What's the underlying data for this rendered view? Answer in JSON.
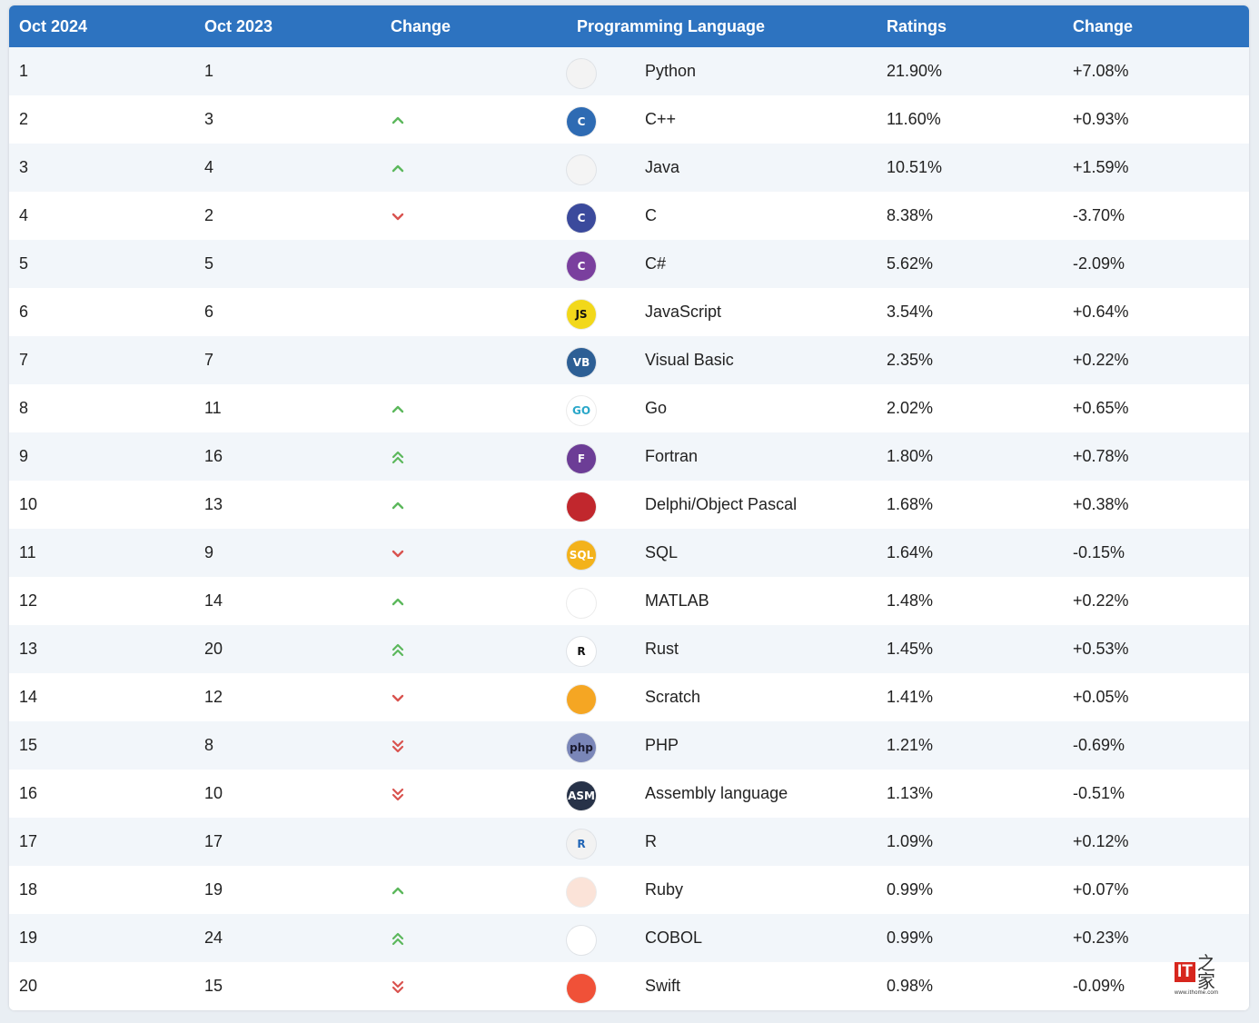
{
  "header": {
    "col1": "Oct 2024",
    "col2": "Oct 2023",
    "col3": "Change",
    "col4": "Programming Language",
    "col5": "Ratings",
    "col6": "Change"
  },
  "colors": {
    "header_bg": "#2d73c0",
    "up": "#5cb85c",
    "down": "#d9534f"
  },
  "rows": [
    {
      "rank": "1",
      "prev": "1",
      "trend": "none",
      "lang": "Python",
      "icon": "python-icon",
      "rating": "21.90%",
      "delta": "+7.08%"
    },
    {
      "rank": "2",
      "prev": "3",
      "trend": "up",
      "lang": "C++",
      "icon": "cpp-icon",
      "rating": "11.60%",
      "delta": "+0.93%"
    },
    {
      "rank": "3",
      "prev": "4",
      "trend": "up",
      "lang": "Java",
      "icon": "java-icon",
      "rating": "10.51%",
      "delta": "+1.59%"
    },
    {
      "rank": "4",
      "prev": "2",
      "trend": "down",
      "lang": "C",
      "icon": "c-icon",
      "rating": "8.38%",
      "delta": "-3.70%"
    },
    {
      "rank": "5",
      "prev": "5",
      "trend": "none",
      "lang": "C#",
      "icon": "csharp-icon",
      "rating": "5.62%",
      "delta": "-2.09%"
    },
    {
      "rank": "6",
      "prev": "6",
      "trend": "none",
      "lang": "JavaScript",
      "icon": "javascript-icon",
      "rating": "3.54%",
      "delta": "+0.64%"
    },
    {
      "rank": "7",
      "prev": "7",
      "trend": "none",
      "lang": "Visual Basic",
      "icon": "visual-basic-icon",
      "rating": "2.35%",
      "delta": "+0.22%"
    },
    {
      "rank": "8",
      "prev": "11",
      "trend": "up",
      "lang": "Go",
      "icon": "go-icon",
      "rating": "2.02%",
      "delta": "+0.65%"
    },
    {
      "rank": "9",
      "prev": "16",
      "trend": "up2",
      "lang": "Fortran",
      "icon": "fortran-icon",
      "rating": "1.80%",
      "delta": "+0.78%"
    },
    {
      "rank": "10",
      "prev": "13",
      "trend": "up",
      "lang": "Delphi/Object Pascal",
      "icon": "delphi-icon",
      "rating": "1.68%",
      "delta": "+0.38%"
    },
    {
      "rank": "11",
      "prev": "9",
      "trend": "down",
      "lang": "SQL",
      "icon": "sql-icon",
      "rating": "1.64%",
      "delta": "-0.15%"
    },
    {
      "rank": "12",
      "prev": "14",
      "trend": "up",
      "lang": "MATLAB",
      "icon": "matlab-icon",
      "rating": "1.48%",
      "delta": "+0.22%"
    },
    {
      "rank": "13",
      "prev": "20",
      "trend": "up2",
      "lang": "Rust",
      "icon": "rust-icon",
      "rating": "1.45%",
      "delta": "+0.53%"
    },
    {
      "rank": "14",
      "prev": "12",
      "trend": "down",
      "lang": "Scratch",
      "icon": "scratch-icon",
      "rating": "1.41%",
      "delta": "+0.05%"
    },
    {
      "rank": "15",
      "prev": "8",
      "trend": "down2",
      "lang": "PHP",
      "icon": "php-icon",
      "rating": "1.21%",
      "delta": "-0.69%"
    },
    {
      "rank": "16",
      "prev": "10",
      "trend": "down2",
      "lang": "Assembly language",
      "icon": "assembly-icon",
      "rating": "1.13%",
      "delta": "-0.51%"
    },
    {
      "rank": "17",
      "prev": "17",
      "trend": "none",
      "lang": "R",
      "icon": "r-icon",
      "rating": "1.09%",
      "delta": "+0.12%"
    },
    {
      "rank": "18",
      "prev": "19",
      "trend": "up",
      "lang": "Ruby",
      "icon": "ruby-icon",
      "rating": "0.99%",
      "delta": "+0.07%"
    },
    {
      "rank": "19",
      "prev": "24",
      "trend": "up2",
      "lang": "COBOL",
      "icon": "cobol-icon",
      "rating": "0.99%",
      "delta": "+0.23%"
    },
    {
      "rank": "20",
      "prev": "15",
      "trend": "down2",
      "lang": "Swift",
      "icon": "swift-icon",
      "rating": "0.98%",
      "delta": "-0.09%"
    }
  ],
  "icon_glyphs": {
    "python-icon": {
      "text": "",
      "bg": "#f3f3f3",
      "fg": "#3b74a8"
    },
    "cpp-icon": {
      "text": "C",
      "bg": "#2e6bb3",
      "fg": "#ffffff"
    },
    "java-icon": {
      "text": "",
      "bg": "#f4f4f4",
      "fg": "#e3342f"
    },
    "c-icon": {
      "text": "C",
      "bg": "#3b4a9c",
      "fg": "#ffffff"
    },
    "csharp-icon": {
      "text": "C",
      "bg": "#7a3f9e",
      "fg": "#ffffff"
    },
    "javascript-icon": {
      "text": "JS",
      "bg": "#f2d81a",
      "fg": "#111111"
    },
    "visual-basic-icon": {
      "text": "VB",
      "bg": "#2d5f95",
      "fg": "#ffffff"
    },
    "go-icon": {
      "text": "GO",
      "bg": "#ffffff",
      "fg": "#2aa7c9"
    },
    "fortran-icon": {
      "text": "F",
      "bg": "#6c3d96",
      "fg": "#ffffff"
    },
    "delphi-icon": {
      "text": "",
      "bg": "#c1272d",
      "fg": "#ffffff"
    },
    "sql-icon": {
      "text": "SQL",
      "bg": "#f3b21b",
      "fg": "#ffffff"
    },
    "matlab-icon": {
      "text": "",
      "bg": "#ffffff",
      "fg": "#d2561a"
    },
    "rust-icon": {
      "text": "R",
      "bg": "#ffffff",
      "fg": "#111111"
    },
    "scratch-icon": {
      "text": "",
      "bg": "#f5a623",
      "fg": "#ffffff"
    },
    "php-icon": {
      "text": "php",
      "bg": "#7a86b8",
      "fg": "#1a1a2e"
    },
    "assembly-icon": {
      "text": "ASM",
      "bg": "#273248",
      "fg": "#ffffff"
    },
    "r-icon": {
      "text": "R",
      "bg": "#f2f2f2",
      "fg": "#2165b6"
    },
    "ruby-icon": {
      "text": "",
      "bg": "#fbe3d8",
      "fg": "#cc342d"
    },
    "cobol-icon": {
      "text": "",
      "bg": "#ffffff",
      "fg": "#1e7fc1"
    },
    "swift-icon": {
      "text": "",
      "bg": "#f05138",
      "fg": "#ffffff"
    }
  },
  "watermark": {
    "logo": "IT之家",
    "url": "www.ithome.com"
  }
}
